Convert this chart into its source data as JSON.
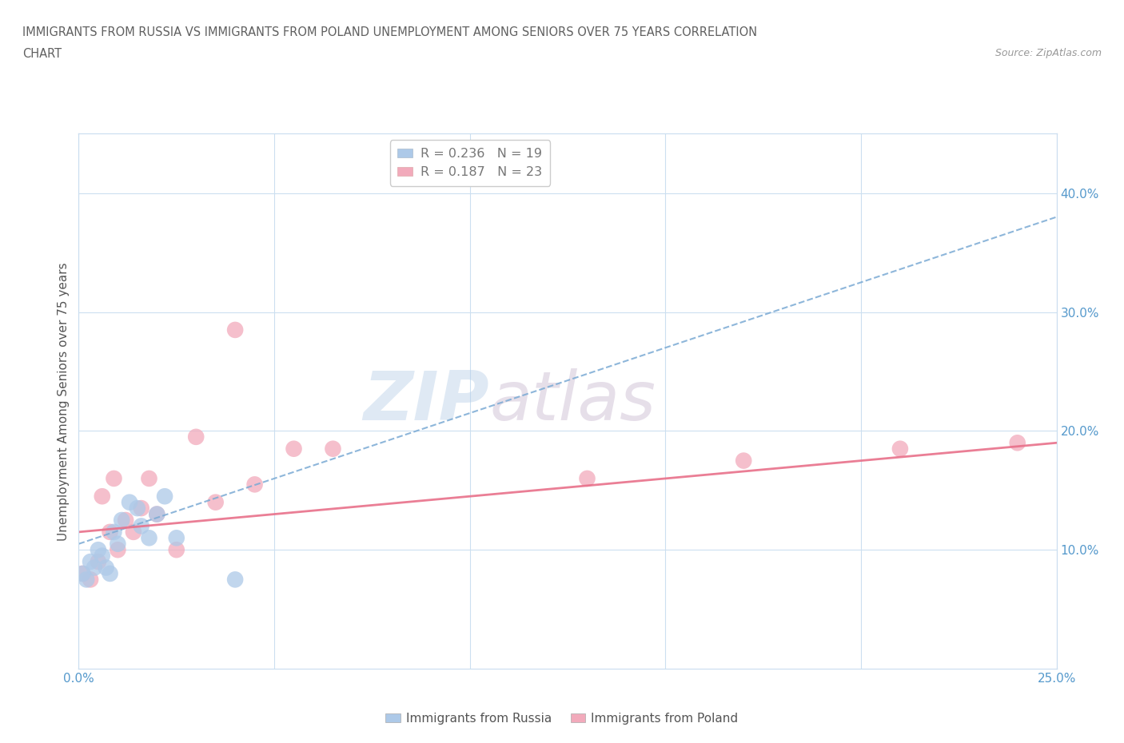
{
  "title_line1": "IMMIGRANTS FROM RUSSIA VS IMMIGRANTS FROM POLAND UNEMPLOYMENT AMONG SENIORS OVER 75 YEARS CORRELATION",
  "title_line2": "CHART",
  "source": "Source: ZipAtlas.com",
  "ylabel": "Unemployment Among Seniors over 75 years",
  "xlim": [
    0.0,
    0.25
  ],
  "ylim": [
    0.0,
    0.45
  ],
  "xtick_positions": [
    0.0,
    0.05,
    0.1,
    0.15,
    0.2,
    0.25
  ],
  "xtick_labels": [
    "0.0%",
    "",
    "",
    "",
    "",
    "25.0%"
  ],
  "ytick_positions": [
    0.1,
    0.2,
    0.3,
    0.4
  ],
  "ytick_labels": [
    "10.0%",
    "20.0%",
    "30.0%",
    "40.0%"
  ],
  "russia_color": "#adc9e8",
  "poland_color": "#f2aabb",
  "russia_line_color": "#7aaad4",
  "poland_line_color": "#e8708a",
  "russia_x": [
    0.001,
    0.002,
    0.003,
    0.004,
    0.005,
    0.006,
    0.007,
    0.008,
    0.009,
    0.01,
    0.011,
    0.013,
    0.015,
    0.016,
    0.018,
    0.02,
    0.022,
    0.025,
    0.04
  ],
  "russia_y": [
    0.08,
    0.075,
    0.09,
    0.085,
    0.1,
    0.095,
    0.085,
    0.08,
    0.115,
    0.105,
    0.125,
    0.14,
    0.135,
    0.12,
    0.11,
    0.13,
    0.145,
    0.11,
    0.075
  ],
  "poland_x": [
    0.001,
    0.003,
    0.005,
    0.006,
    0.008,
    0.009,
    0.01,
    0.012,
    0.014,
    0.016,
    0.018,
    0.02,
    0.025,
    0.03,
    0.035,
    0.04,
    0.045,
    0.055,
    0.065,
    0.13,
    0.17,
    0.21,
    0.24
  ],
  "poland_y": [
    0.08,
    0.075,
    0.09,
    0.145,
    0.115,
    0.16,
    0.1,
    0.125,
    0.115,
    0.135,
    0.16,
    0.13,
    0.1,
    0.195,
    0.14,
    0.285,
    0.155,
    0.185,
    0.185,
    0.16,
    0.175,
    0.185,
    0.19
  ],
  "russia_trend_x": [
    0.0,
    0.25
  ],
  "russia_trend_y": [
    0.105,
    0.38
  ],
  "poland_trend_x": [
    0.0,
    0.25
  ],
  "poland_trend_y": [
    0.115,
    0.19
  ],
  "watermark_text": "ZIP",
  "watermark_text2": "atlas",
  "background_color": "#ffffff",
  "grid_color": "#ccdff0",
  "title_color": "#606060",
  "axis_label_color": "#5599cc",
  "source_color": "#999999",
  "legend_russia_label": "R = 0.236   N = 19",
  "legend_poland_label": "R = 0.187   N = 23",
  "bottom_legend_russia": "Immigrants from Russia",
  "bottom_legend_poland": "Immigrants from Poland"
}
